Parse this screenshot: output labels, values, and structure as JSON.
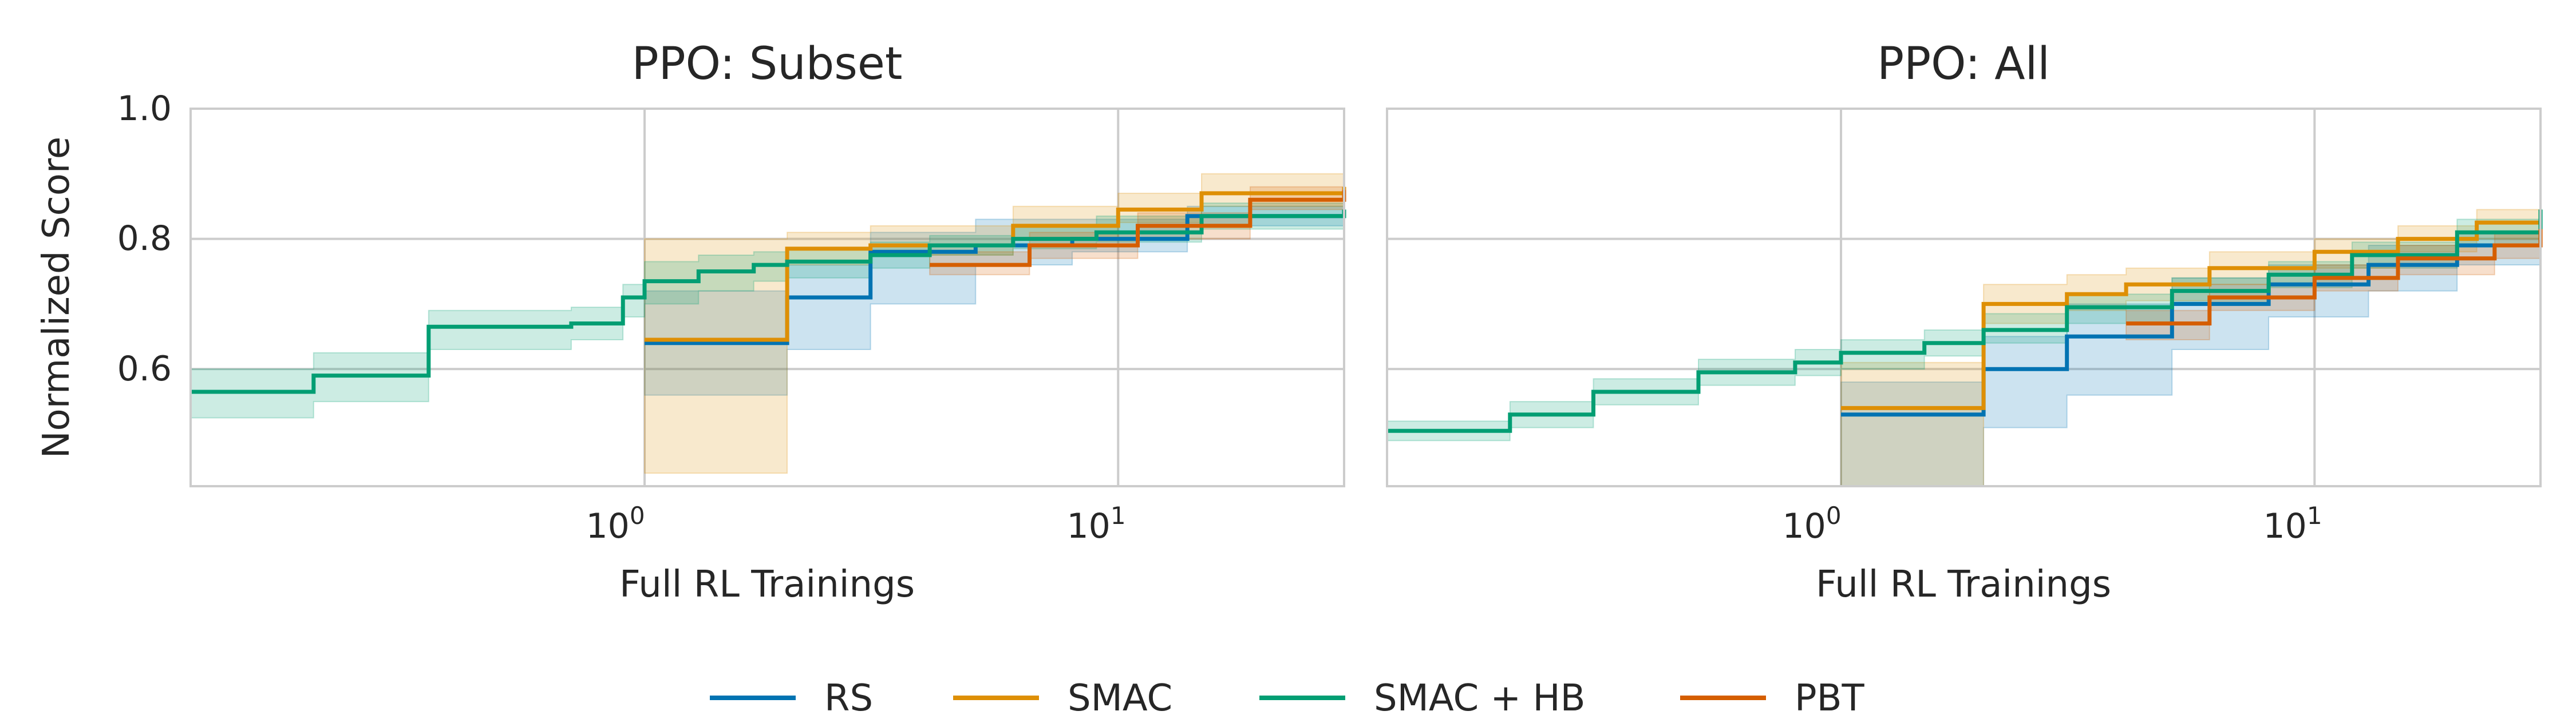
{
  "ylabel": "Normalized Score",
  "yticks": [
    "0.6",
    "0.8",
    "1.0"
  ],
  "xticks": [
    {
      "base": "10",
      "exp": "0"
    },
    {
      "base": "10",
      "exp": "1"
    }
  ],
  "legend": [
    {
      "label": "RS",
      "color": "#0173b2"
    },
    {
      "label": "SMAC",
      "color": "#de8f05"
    },
    {
      "label": "SMAC + HB",
      "color": "#029e73"
    },
    {
      "label": "PBT",
      "color": "#d55e00"
    }
  ],
  "chart_data": [
    {
      "type": "line",
      "title": "PPO: Subset",
      "xlabel": "Full RL Trainings",
      "ylabel": "Normalized Score",
      "x_scale": "log",
      "xlim": [
        0.11,
        30
      ],
      "ylim": [
        0.42,
        1.0
      ],
      "grid": true,
      "series": [
        {
          "name": "SMAC + HB",
          "color": "#029e73",
          "x": [
            0.11,
            0.2,
            0.35,
            0.7,
            0.9,
            1.0,
            1.3,
            1.7,
            2.0,
            3.0,
            4.0,
            6.0,
            9.0,
            15.0,
            30.0
          ],
          "y": [
            0.565,
            0.59,
            0.665,
            0.67,
            0.71,
            0.735,
            0.75,
            0.76,
            0.765,
            0.775,
            0.79,
            0.8,
            0.81,
            0.835,
            0.845
          ],
          "lower": [
            0.525,
            0.55,
            0.63,
            0.645,
            0.68,
            0.7,
            0.72,
            0.735,
            0.74,
            0.755,
            0.775,
            0.785,
            0.795,
            0.815,
            0.82
          ],
          "upper": [
            0.6,
            0.625,
            0.69,
            0.695,
            0.73,
            0.765,
            0.775,
            0.78,
            0.785,
            0.795,
            0.805,
            0.82,
            0.835,
            0.855,
            0.865
          ]
        },
        {
          "name": "RS",
          "color": "#0173b2",
          "x": [
            1.0,
            2.0,
            3.0,
            5.0,
            8.0,
            14.0,
            30.0
          ],
          "y": [
            0.64,
            0.71,
            0.78,
            0.79,
            0.8,
            0.835,
            0.84
          ],
          "lower": [
            0.56,
            0.63,
            0.7,
            0.76,
            0.78,
            0.82,
            0.825
          ],
          "upper": [
            0.72,
            0.76,
            0.81,
            0.83,
            0.83,
            0.85,
            0.86
          ]
        },
        {
          "name": "SMAC",
          "color": "#de8f05",
          "x": [
            1.0,
            2.0,
            3.0,
            6.0,
            10.0,
            15.0,
            30.0
          ],
          "y": [
            0.645,
            0.785,
            0.79,
            0.82,
            0.845,
            0.87,
            0.88
          ],
          "lower": [
            0.44,
            0.76,
            0.775,
            0.8,
            0.825,
            0.85,
            0.86
          ],
          "upper": [
            0.8,
            0.81,
            0.82,
            0.85,
            0.87,
            0.9,
            0.905
          ]
        },
        {
          "name": "PBT",
          "color": "#d55e00",
          "x": [
            4.0,
            6.5,
            11.0,
            19.0,
            30.0
          ],
          "y": [
            0.76,
            0.79,
            0.82,
            0.86,
            0.875
          ],
          "lower": [
            0.745,
            0.77,
            0.8,
            0.845,
            0.86
          ],
          "upper": [
            0.78,
            0.81,
            0.84,
            0.88,
            0.895
          ]
        }
      ]
    },
    {
      "type": "line",
      "title": "PPO: All",
      "xlabel": "Full RL Trainings",
      "ylabel": "Normalized Score",
      "x_scale": "log",
      "xlim": [
        0.11,
        30
      ],
      "ylim": [
        0.42,
        1.0
      ],
      "grid": true,
      "series": [
        {
          "name": "SMAC + HB",
          "color": "#029e73",
          "x": [
            0.11,
            0.2,
            0.3,
            0.5,
            0.8,
            1.0,
            1.5,
            2.0,
            3.0,
            5.0,
            8.0,
            12.0,
            20.0,
            30.0
          ],
          "y": [
            0.505,
            0.53,
            0.565,
            0.595,
            0.61,
            0.625,
            0.64,
            0.66,
            0.695,
            0.72,
            0.745,
            0.775,
            0.81,
            0.845
          ],
          "lower": [
            0.49,
            0.51,
            0.545,
            0.575,
            0.59,
            0.6,
            0.62,
            0.64,
            0.67,
            0.7,
            0.725,
            0.755,
            0.79,
            0.825
          ],
          "upper": [
            0.52,
            0.55,
            0.585,
            0.615,
            0.63,
            0.645,
            0.66,
            0.685,
            0.715,
            0.74,
            0.765,
            0.795,
            0.83,
            0.86
          ]
        },
        {
          "name": "RS",
          "color": "#0173b2",
          "x": [
            1.0,
            2.0,
            3.0,
            5.0,
            8.0,
            13.0,
            20.0,
            30.0
          ],
          "y": [
            0.53,
            0.6,
            0.65,
            0.7,
            0.73,
            0.76,
            0.79,
            0.81
          ],
          "lower": [
            0.42,
            0.51,
            0.56,
            0.63,
            0.68,
            0.72,
            0.76,
            0.785
          ],
          "upper": [
            0.58,
            0.65,
            0.7,
            0.74,
            0.76,
            0.79,
            0.81,
            0.835
          ]
        },
        {
          "name": "SMAC",
          "color": "#de8f05",
          "x": [
            1.0,
            2.0,
            3.0,
            4.0,
            6.0,
            10.0,
            15.0,
            22.0,
            30.0
          ],
          "y": [
            0.54,
            0.7,
            0.715,
            0.73,
            0.755,
            0.78,
            0.8,
            0.825,
            0.845
          ],
          "lower": [
            0.42,
            0.67,
            0.69,
            0.705,
            0.73,
            0.755,
            0.78,
            0.8,
            0.82
          ],
          "upper": [
            0.61,
            0.73,
            0.745,
            0.755,
            0.78,
            0.8,
            0.82,
            0.845,
            0.865
          ]
        },
        {
          "name": "PBT",
          "color": "#d55e00",
          "x": [
            4.0,
            6.0,
            10.0,
            15.0,
            24.0,
            30.0
          ],
          "y": [
            0.67,
            0.71,
            0.74,
            0.77,
            0.79,
            0.815
          ],
          "lower": [
            0.645,
            0.69,
            0.72,
            0.745,
            0.77,
            0.8
          ],
          "upper": [
            0.69,
            0.73,
            0.76,
            0.79,
            0.81,
            0.83
          ]
        }
      ]
    }
  ]
}
